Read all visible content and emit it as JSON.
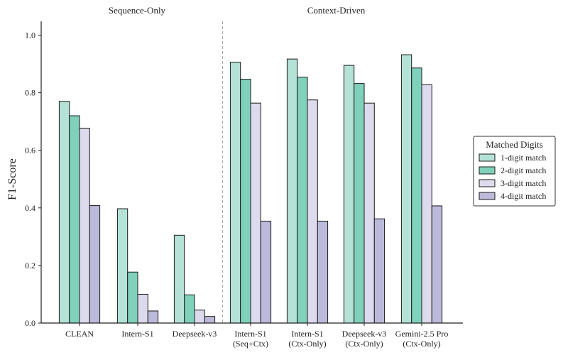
{
  "chart_data": {
    "type": "bar",
    "ylabel": "F1-Score",
    "xlabel": "",
    "ylim": [
      0,
      1.05
    ],
    "yticks": [
      "0.0",
      "0.2",
      "0.4",
      "0.6",
      "0.8",
      "1.0"
    ],
    "categories": [
      [
        "CLEAN"
      ],
      [
        "Intern-S1"
      ],
      [
        "Deepseek-v3"
      ],
      [
        "Intern-S1",
        "(Seq+Ctx)"
      ],
      [
        "Intern-S1",
        "(Ctx-Only)"
      ],
      [
        "Deepseek-v3",
        "(Ctx-Only)"
      ],
      [
        "Gemini-2.5 Pro",
        "(Ctx-Only)"
      ]
    ],
    "groups": [
      {
        "label": "Sequence-Only",
        "from": 0,
        "to": 2
      },
      {
        "label": "Context-Driven",
        "from": 3,
        "to": 6
      }
    ],
    "separator_after": 2,
    "legend": {
      "title": "Matched Digits",
      "position": "right"
    },
    "series": [
      {
        "name": "1-digit match",
        "color": "#b4e2d6",
        "values": [
          0.77,
          0.397,
          0.305,
          0.906,
          0.917,
          0.895,
          0.932
        ]
      },
      {
        "name": "2-digit match",
        "color": "#7fd1bb",
        "values": [
          0.72,
          0.177,
          0.098,
          0.847,
          0.854,
          0.832,
          0.886
        ]
      },
      {
        "name": "3-digit match",
        "color": "#dcdaec",
        "values": [
          0.677,
          0.1,
          0.045,
          0.764,
          0.775,
          0.764,
          0.828
        ]
      },
      {
        "name": "4-digit match",
        "color": "#bcbada",
        "values": [
          0.408,
          0.042,
          0.023,
          0.354,
          0.354,
          0.362,
          0.407
        ]
      }
    ],
    "grid": false
  }
}
